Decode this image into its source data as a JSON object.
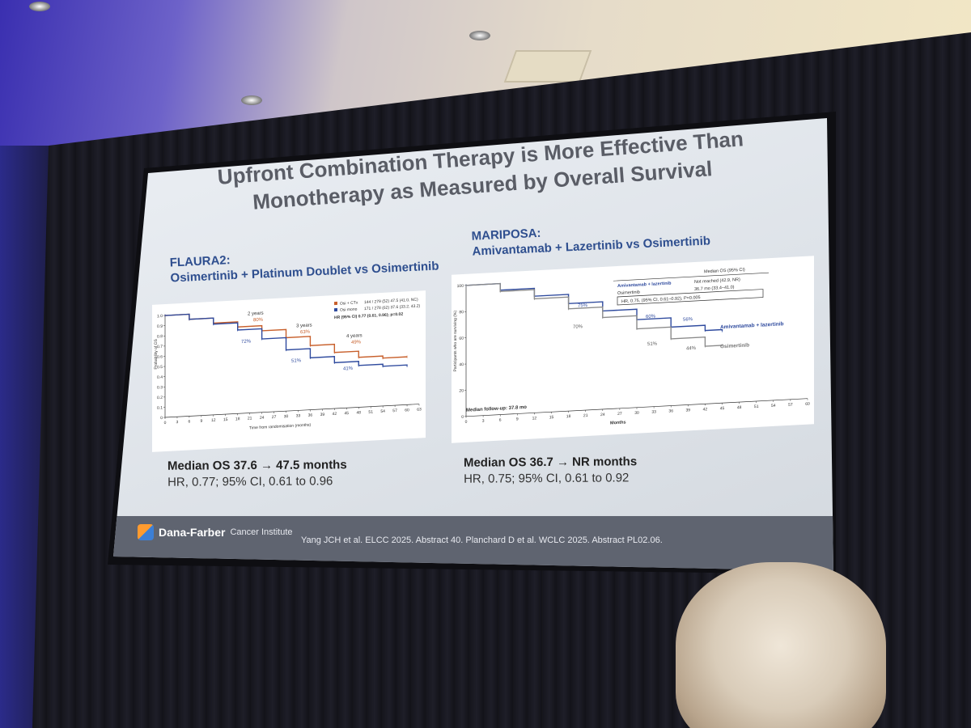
{
  "slide": {
    "title_line1": "Upfront Combination Therapy is More Effective Than",
    "title_line2": "Monotherapy as Measured by Overall Survival",
    "left": {
      "subtitle_line1": "FLAURA2:",
      "subtitle_line2": "Osimertinib + Platinum Doublet vs Osimertinib",
      "median_label": "Median OS 37.6 → 47.5 months",
      "hr_text": "HR, 0.77; 95% CI, 0.61 to 0.96",
      "plot": {
        "legend": [
          {
            "name": "Osi + CTx",
            "value": "144 / 279 (52)    47.5 (41.0, NC)",
            "color": "#c8602c"
          },
          {
            "name": "Osi mono",
            "value": "171 / 278 (62)    37.6 (33.2, 43.2)",
            "color": "#2e4a9e"
          }
        ],
        "hr_row": "HR (95% CI)    0.77 (0.61, 0.96); p=0.02",
        "annotations": [
          "2 years",
          "80%",
          "72%",
          "3 years",
          "63%",
          "51%",
          "4 years",
          "49%",
          "41%"
        ],
        "ylabel": "Probability of OS",
        "xlabel": "Time from randomisation (months)",
        "x_ticks": [
          "0",
          "3",
          "6",
          "9",
          "12",
          "15",
          "18",
          "21",
          "24",
          "27",
          "30",
          "33",
          "36",
          "39",
          "42",
          "45",
          "48",
          "51",
          "54",
          "57",
          "60",
          "63"
        ],
        "y_ticks": [
          "1.0",
          "0.9",
          "0.8",
          "0.7",
          "0.6",
          "0.5",
          "0.4",
          "0.3",
          "0.2",
          "0.1",
          "0"
        ]
      }
    },
    "right": {
      "subtitle_line1": "MARIPOSA:",
      "subtitle_line2": "Amivantamab + Lazertinib vs Osimertinib",
      "median_label": "Median OS 36.7 → NR months",
      "hr_text": "HR, 0.75; 95% CI, 0.61 to 0.92",
      "plot": {
        "table_header": "Median OS (95% CI)",
        "rows": [
          {
            "name": "Amivantamab + lazertinib",
            "value": "Not reached (42.9, NR)"
          },
          {
            "name": "Osimertinib",
            "value": "36.7 mo (33.4–41.0)"
          }
        ],
        "hr_box": "HR, 0.75, (95% CI, 0.61–0.92), P=0.005",
        "annotations": [
          "75%",
          "70%",
          "60%",
          "51%",
          "56%",
          "44%"
        ],
        "curve_labels": [
          "Amivantamab + lazertinib",
          "Osimertinib"
        ],
        "follow_up": "Median follow-up: 37.8 mo",
        "ylabel": "Participants who are surviving (%)",
        "xlabel": "Months",
        "x_ticks": [
          "0",
          "3",
          "6",
          "9",
          "12",
          "15",
          "18",
          "21",
          "24",
          "27",
          "30",
          "33",
          "36",
          "39",
          "42",
          "45",
          "48",
          "51",
          "54",
          "57",
          "60"
        ],
        "y_ticks": [
          "100",
          "80",
          "60",
          "40",
          "20",
          "0"
        ]
      }
    },
    "footer": {
      "org_name": "Dana-Farber",
      "org_sub": "Cancer Institute",
      "citation": "Yang JCH et al. ELCC 2025. Abstract 40. Planchard D et al. WCLC 2025. Abstract PL02.06."
    }
  },
  "chart_data": [
    {
      "type": "line",
      "title": "",
      "xlabel": "Time from randomisation (months)",
      "ylabel": "Probability of OS",
      "xlim": [
        0,
        63
      ],
      "ylim": [
        0,
        1.0
      ],
      "series": [
        {
          "name": "Osi + CTx",
          "color": "#c8602c",
          "x": [
            0,
            6,
            12,
            18,
            24,
            30,
            36,
            42,
            48,
            54,
            60
          ],
          "y": [
            1.0,
            0.95,
            0.9,
            0.85,
            0.8,
            0.72,
            0.63,
            0.55,
            0.49,
            0.47,
            0.47
          ]
        },
        {
          "name": "Osi mono",
          "color": "#2e4a9e",
          "x": [
            0,
            6,
            12,
            18,
            24,
            30,
            36,
            42,
            48,
            54,
            60
          ],
          "y": [
            1.0,
            0.95,
            0.89,
            0.82,
            0.72,
            0.6,
            0.51,
            0.45,
            0.41,
            0.39,
            0.38
          ]
        }
      ]
    },
    {
      "type": "line",
      "title": "",
      "xlabel": "Months",
      "ylabel": "Participants who are surviving (%)",
      "xlim": [
        0,
        60
      ],
      "ylim": [
        0,
        100
      ],
      "series": [
        {
          "name": "Amivantamab + lazertinib",
          "color": "#2e4a9e",
          "x": [
            0,
            6,
            12,
            18,
            24,
            30,
            36,
            42,
            45
          ],
          "y": [
            100,
            95,
            89,
            82,
            75,
            67,
            60,
            56,
            55
          ]
        },
        {
          "name": "Osimertinib",
          "color": "#8a8a8a",
          "x": [
            0,
            6,
            12,
            18,
            24,
            30,
            36,
            42,
            45
          ],
          "y": [
            100,
            94,
            87,
            78,
            70,
            60,
            51,
            44,
            44
          ]
        }
      ]
    }
  ]
}
